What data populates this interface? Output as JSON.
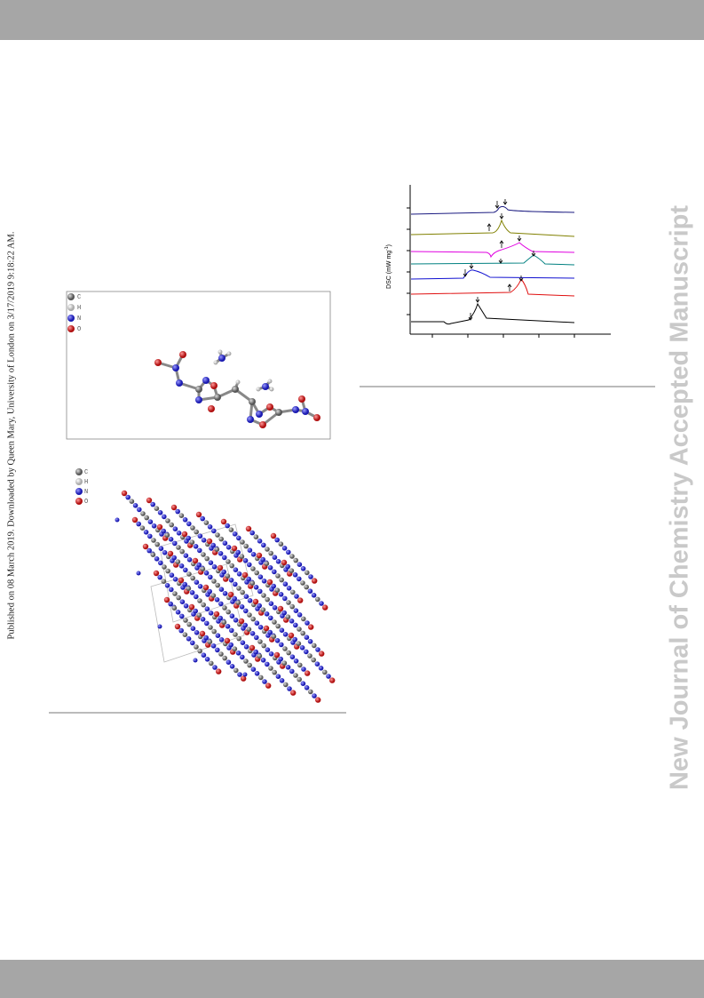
{
  "sidebar": {
    "left": "Published on 08 March 2019. Downloaded by Queen Mary, University of London on 3/17/2019 9:18:22 AM.",
    "right": "New Journal of Chemistry Accepted Manuscript"
  },
  "figure_1": {
    "legend": [
      "C",
      "H",
      "N",
      "O"
    ]
  },
  "figure_2": {
    "legend": [
      "C",
      "H",
      "N",
      "O"
    ]
  },
  "dsc": {
    "y_label": [
      "DSC (mW mg",
      "-1",
      ")"
    ]
  }
}
